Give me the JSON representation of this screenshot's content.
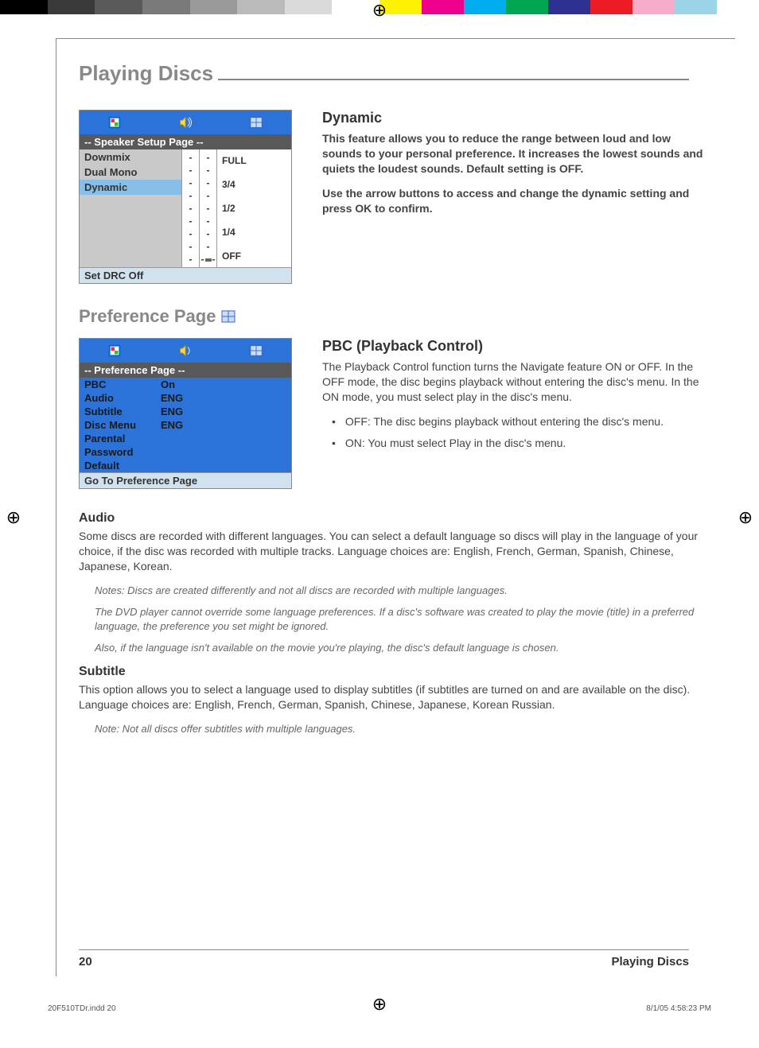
{
  "colorbar_left": [
    "#000000",
    "#3a3a3a",
    "#5a5a5a",
    "#7a7a7a",
    "#9a9a9a",
    "#bababa",
    "#dadada",
    "#ffffff"
  ],
  "colorbar_right": [
    "#fff200",
    "#ec008c",
    "#00aeef",
    "#00a651",
    "#2e3192",
    "#ed1c24",
    "#f7adc9",
    "#9bd3e7",
    "#ffffff"
  ],
  "page_title": "Playing Discs",
  "speaker_menu": {
    "header": "--  Speaker Setup Page   --",
    "left_items": [
      "Downmix",
      "Dual Mono",
      "Dynamic"
    ],
    "highlight_index": 2,
    "scale": [
      "FULL",
      "",
      "3/4",
      "",
      "1/2",
      "",
      "1/4",
      "",
      "OFF"
    ],
    "footer": "Set DRC Off"
  },
  "dynamic": {
    "title": "Dynamic",
    "p1": "This feature allows you to reduce the range between loud and low sounds to your personal preference. It increases the lowest sounds and quiets the loudest sounds. Default setting is OFF.",
    "p2": "Use the arrow buttons to access and change the dynamic setting and press OK to confirm."
  },
  "pref_section_title": "Preference Page",
  "pref_menu": {
    "header": "--  Preference Page  --",
    "rows": [
      {
        "k": "PBC",
        "v": "On"
      },
      {
        "k": "Audio",
        "v": "ENG"
      },
      {
        "k": "Subtitle",
        "v": "ENG"
      },
      {
        "k": "Disc Menu",
        "v": "ENG"
      },
      {
        "k": "Parental",
        "v": ""
      },
      {
        "k": "Password",
        "v": ""
      },
      {
        "k": "Default",
        "v": ""
      }
    ],
    "footer": "Go To Preference Page"
  },
  "pbc": {
    "title": "PBC (Playback Control)",
    "p1": "The Playback Control function turns the Navigate feature ON or OFF.  In the OFF mode, the disc begins playback without entering the disc's menu. In the ON mode, you must select play in the disc's menu.",
    "b1": "OFF:  The disc begins playback without entering the disc's menu.",
    "b2": "ON:  You must select Play in the disc's menu."
  },
  "audio": {
    "title": "Audio",
    "p1": "Some discs are recorded with different languages. You can select a default language so discs will play in the language of your choice, if the disc was recorded with multiple tracks. Language choices are: English, French, German, Spanish, Chinese, Japanese, Korean.",
    "n1": "Notes: Discs are created differently and not all discs are recorded with multiple languages.",
    "n2": "The DVD player cannot  override some language preferences. If a disc's software was created to play the movie (title) in a preferred language, the preference you set might be ignored.",
    "n3": "Also, if the language isn't available on the movie you're playing, the disc's default language is chosen."
  },
  "subtitle": {
    "title": "Subtitle",
    "p1": "This option allows you to select a language used to display subtitles  (if subtitles are turned on and are available on the disc). Language choices are: English, French, German, Spanish, Chinese, Japanese, Korean Russian.",
    "n1": "Note: Not all discs offer subtitles with multiple languages."
  },
  "footer": {
    "page_num": "20",
    "section": "Playing Discs"
  },
  "print": {
    "file": "20F510TDr.indd   20",
    "date": "8/1/05   4:58:23 PM"
  }
}
